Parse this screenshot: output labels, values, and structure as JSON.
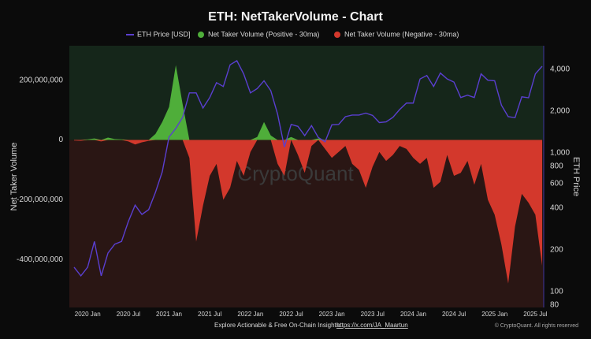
{
  "chart_data": {
    "type": "area-line",
    "title": "ETH: NetTakerVolume - Chart",
    "ylabel": "Net Taker Volume",
    "y2label": "ETH Price",
    "watermark": "CryptoQuant",
    "footer": "Explore Actionable & Free On-Chain Insights:",
    "footer_link": "https://x.com/JA_Maartun",
    "copyright": "© CryptoQuant. All rights reserved",
    "x": [
      "2019-11",
      "2019-12",
      "2020-01",
      "2020-02",
      "2020-03",
      "2020-04",
      "2020-05",
      "2020-06",
      "2020-07",
      "2020-08",
      "2020-09",
      "2020-10",
      "2020-11",
      "2020-12",
      "2021-01",
      "2021-02",
      "2021-03",
      "2021-04",
      "2021-05",
      "2021-06",
      "2021-07",
      "2021-08",
      "2021-09",
      "2021-10",
      "2021-11",
      "2021-12",
      "2022-01",
      "2022-02",
      "2022-03",
      "2022-04",
      "2022-05",
      "2022-06",
      "2022-07",
      "2022-08",
      "2022-09",
      "2022-10",
      "2022-11",
      "2022-12",
      "2023-01",
      "2023-02",
      "2023-03",
      "2023-04",
      "2023-05",
      "2023-06",
      "2023-07",
      "2023-08",
      "2023-09",
      "2023-10",
      "2023-11",
      "2023-12",
      "2024-01",
      "2024-02",
      "2024-03",
      "2024-04",
      "2024-05",
      "2024-06",
      "2024-07",
      "2024-08",
      "2024-09",
      "2024-10",
      "2024-11",
      "2024-12",
      "2025-01",
      "2025-02",
      "2025-03",
      "2025-04",
      "2025-05",
      "2025-06",
      "2025-07",
      "2025-08"
    ],
    "series": [
      {
        "name": "ETH Price [USD]",
        "color": "#5a3fd0",
        "axis": "y2",
        "kind": "line",
        "values": [
          150,
          130,
          150,
          230,
          130,
          190,
          220,
          230,
          320,
          420,
          360,
          390,
          520,
          730,
          1300,
          1500,
          1800,
          2700,
          2700,
          2100,
          2500,
          3200,
          3000,
          4300,
          4600,
          3700,
          2700,
          2900,
          3300,
          2800,
          1900,
          1100,
          1600,
          1550,
          1330,
          1570,
          1290,
          1200,
          1590,
          1600,
          1820,
          1870,
          1870,
          1930,
          1860,
          1650,
          1670,
          1800,
          2050,
          2280,
          2280,
          3400,
          3600,
          3000,
          3750,
          3400,
          3230,
          2500,
          2600,
          2500,
          3700,
          3330,
          3300,
          2200,
          1820,
          1790,
          2530,
          2490,
          3700,
          4200
        ]
      },
      {
        "name": "Net Taker Volume (Positive - 30ma)",
        "color": "#4fae3a",
        "kind": "area",
        "values": [
          0,
          0,
          2000000,
          5000000,
          0,
          8000000,
          3000000,
          2000000,
          0,
          0,
          0,
          0,
          20000000,
          60000000,
          110000000,
          250000000,
          120000000,
          0,
          0,
          0,
          0,
          0,
          0,
          0,
          0,
          0,
          0,
          10000000,
          60000000,
          15000000,
          0,
          0,
          10000000,
          0,
          0,
          0,
          5000000,
          0,
          0,
          0,
          0,
          0,
          0,
          0,
          0,
          0,
          0,
          0,
          0,
          0,
          0,
          0,
          0,
          0,
          0,
          0,
          0,
          0,
          0,
          0,
          0,
          0,
          0,
          0,
          0,
          0,
          0,
          0,
          0,
          0
        ]
      },
      {
        "name": "Net Taker Volume (Negative - 30ma)",
        "color": "#d3382c",
        "kind": "area",
        "values": [
          -2000000,
          -3000000,
          0,
          0,
          -5000000,
          0,
          0,
          0,
          -5000000,
          -15000000,
          -8000000,
          -3000000,
          0,
          0,
          0,
          0,
          0,
          -60000000,
          -340000000,
          -220000000,
          -120000000,
          -80000000,
          -200000000,
          -160000000,
          -70000000,
          -120000000,
          -40000000,
          0,
          0,
          0,
          -80000000,
          -120000000,
          0,
          -50000000,
          -110000000,
          -20000000,
          0,
          -30000000,
          -60000000,
          -40000000,
          -20000000,
          -80000000,
          -100000000,
          -160000000,
          -90000000,
          -40000000,
          -70000000,
          -50000000,
          -20000000,
          -30000000,
          -60000000,
          -80000000,
          -60000000,
          -160000000,
          -140000000,
          -50000000,
          -120000000,
          -110000000,
          -70000000,
          -150000000,
          -80000000,
          -200000000,
          -250000000,
          -350000000,
          -480000000,
          -290000000,
          -180000000,
          -210000000,
          -250000000,
          -420000000
        ]
      }
    ],
    "xticks": [
      {
        "value": "2020-01",
        "label": "2020 Jan"
      },
      {
        "value": "2020-07",
        "label": "2020 Jul"
      },
      {
        "value": "2021-01",
        "label": "2021 Jan"
      },
      {
        "value": "2021-07",
        "label": "2021 Jul"
      },
      {
        "value": "2022-01",
        "label": "2022 Jan"
      },
      {
        "value": "2022-07",
        "label": "2022 Jul"
      },
      {
        "value": "2023-01",
        "label": "2023 Jan"
      },
      {
        "value": "2023-07",
        "label": "2023 Jul"
      },
      {
        "value": "2024-01",
        "label": "2024 Jan"
      },
      {
        "value": "2024-07",
        "label": "2024 Jul"
      },
      {
        "value": "2025-01",
        "label": "2025 Jan"
      },
      {
        "value": "2025-07",
        "label": "2025 Jul"
      }
    ],
    "ylim": [
      -560000000,
      315000000
    ],
    "yticks": [
      {
        "value": -400000000,
        "label": "-400,000,000"
      },
      {
        "value": -200000000,
        "label": "-200,000,000"
      },
      0,
      {
        "value": 200000000,
        "label": "200,000,000"
      }
    ],
    "y2lim": [
      77,
      5900
    ],
    "y2ticks": [
      80,
      100,
      200,
      400,
      600,
      800,
      {
        "value": 1000,
        "label": "1,000"
      },
      {
        "value": 2000,
        "label": "2,000"
      },
      {
        "value": 4000,
        "label": "4,000"
      }
    ],
    "y2log": true,
    "grid": false,
    "legend": "top"
  }
}
